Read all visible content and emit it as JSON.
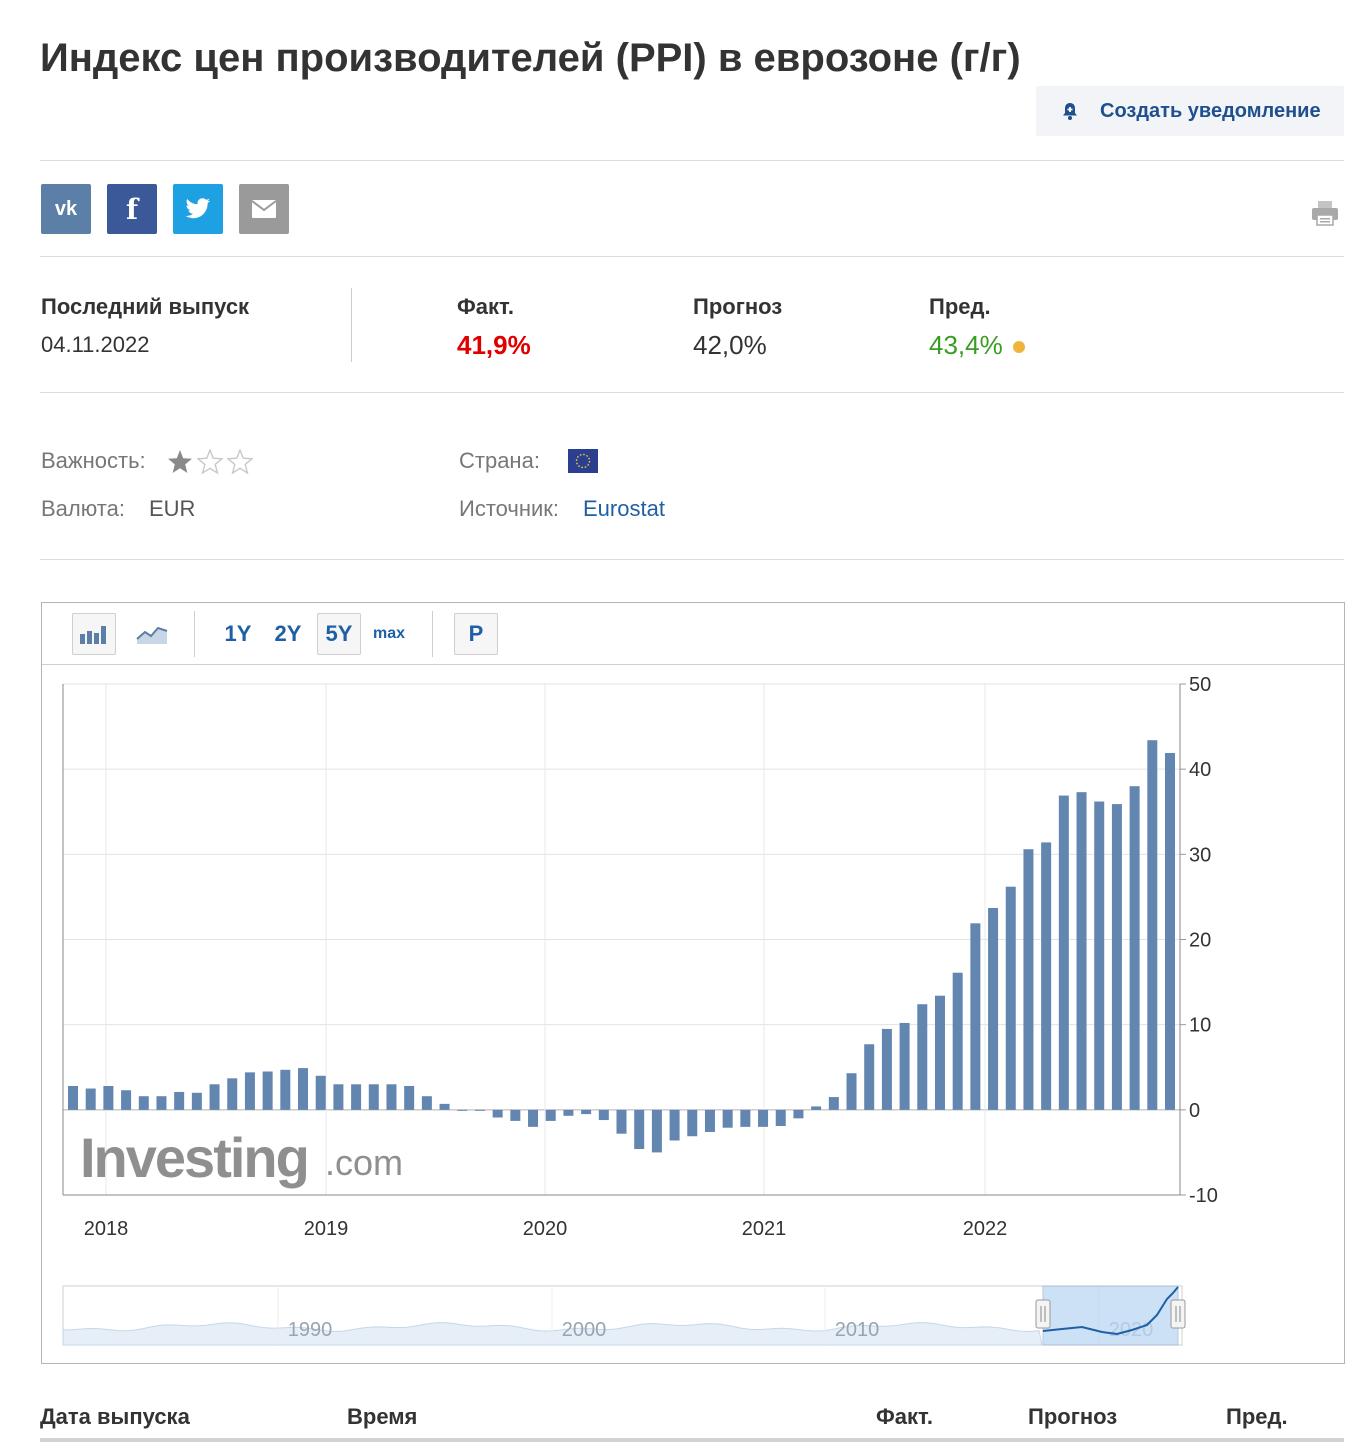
{
  "page": {
    "title": "Индекс цен производителей (PPI) в еврозоне (г/г)",
    "alert_label": "Создать уведомление"
  },
  "share": {
    "vk_label": "vk",
    "fb_label": "f",
    "icons": [
      "vk-icon",
      "facebook-icon",
      "twitter-icon",
      "mail-icon",
      "printer-icon"
    ]
  },
  "latest": {
    "label": "Последний выпуск",
    "date": "04.11.2022",
    "actual_label": "Факт.",
    "actual_value": "41,9%",
    "actual_color": "#e00000",
    "forecast_label": "Прогноз",
    "forecast_value": "42,0%",
    "previous_label": "Пред.",
    "previous_value": "43,4%",
    "previous_color": "#3a9d23"
  },
  "meta": {
    "importance_label": "Важность:",
    "importance_stars": 1,
    "importance_max": 3,
    "country_label": "Страна:",
    "currency_label": "Валюта:",
    "currency_value": "EUR",
    "source_label": "Источник:",
    "source_value": "Eurostat"
  },
  "toolbar": {
    "ranges": [
      "1Y",
      "2Y",
      "5Y",
      "max"
    ],
    "active_range": "5Y",
    "p_label": "P"
  },
  "chart_data": {
    "type": "bar",
    "watermark": "Investing",
    "watermark_suffix": ".com",
    "bar_color": "#6386b0",
    "x_ticks": [
      "2018",
      "2019",
      "2020",
      "2021",
      "2022"
    ],
    "y_ticks": [
      50,
      40,
      30,
      20,
      10,
      0,
      -10
    ],
    "ylim": [
      -10,
      50
    ],
    "grid": true,
    "y_axis_side": "right",
    "values": [
      2.8,
      2.5,
      2.8,
      2.3,
      1.6,
      1.6,
      2.1,
      2.0,
      3.0,
      3.7,
      4.4,
      4.5,
      4.7,
      4.9,
      4.0,
      3.0,
      3.0,
      3.0,
      3.0,
      2.8,
      1.6,
      0.7,
      0.0,
      -0.1,
      -0.9,
      -1.3,
      -2.0,
      -1.3,
      -0.7,
      -0.5,
      -1.2,
      -2.8,
      -4.6,
      -5.0,
      -3.6,
      -3.1,
      -2.6,
      -2.1,
      -2.0,
      -2.0,
      -1.9,
      -1.0,
      0.4,
      1.5,
      4.3,
      7.7,
      9.5,
      10.2,
      12.4,
      13.4,
      16.1,
      21.9,
      23.7,
      26.2,
      30.6,
      31.4,
      36.9,
      37.3,
      36.2,
      35.9,
      38.0,
      43.4,
      41.9
    ],
    "navigator": {
      "x_ticks": [
        "1990",
        "2000",
        "2010",
        "2020"
      ],
      "selected_range": "2017–2022"
    }
  },
  "table": {
    "headers": [
      "Дата выпуска",
      "Время",
      "Факт.",
      "Прогноз",
      "Пред."
    ]
  }
}
